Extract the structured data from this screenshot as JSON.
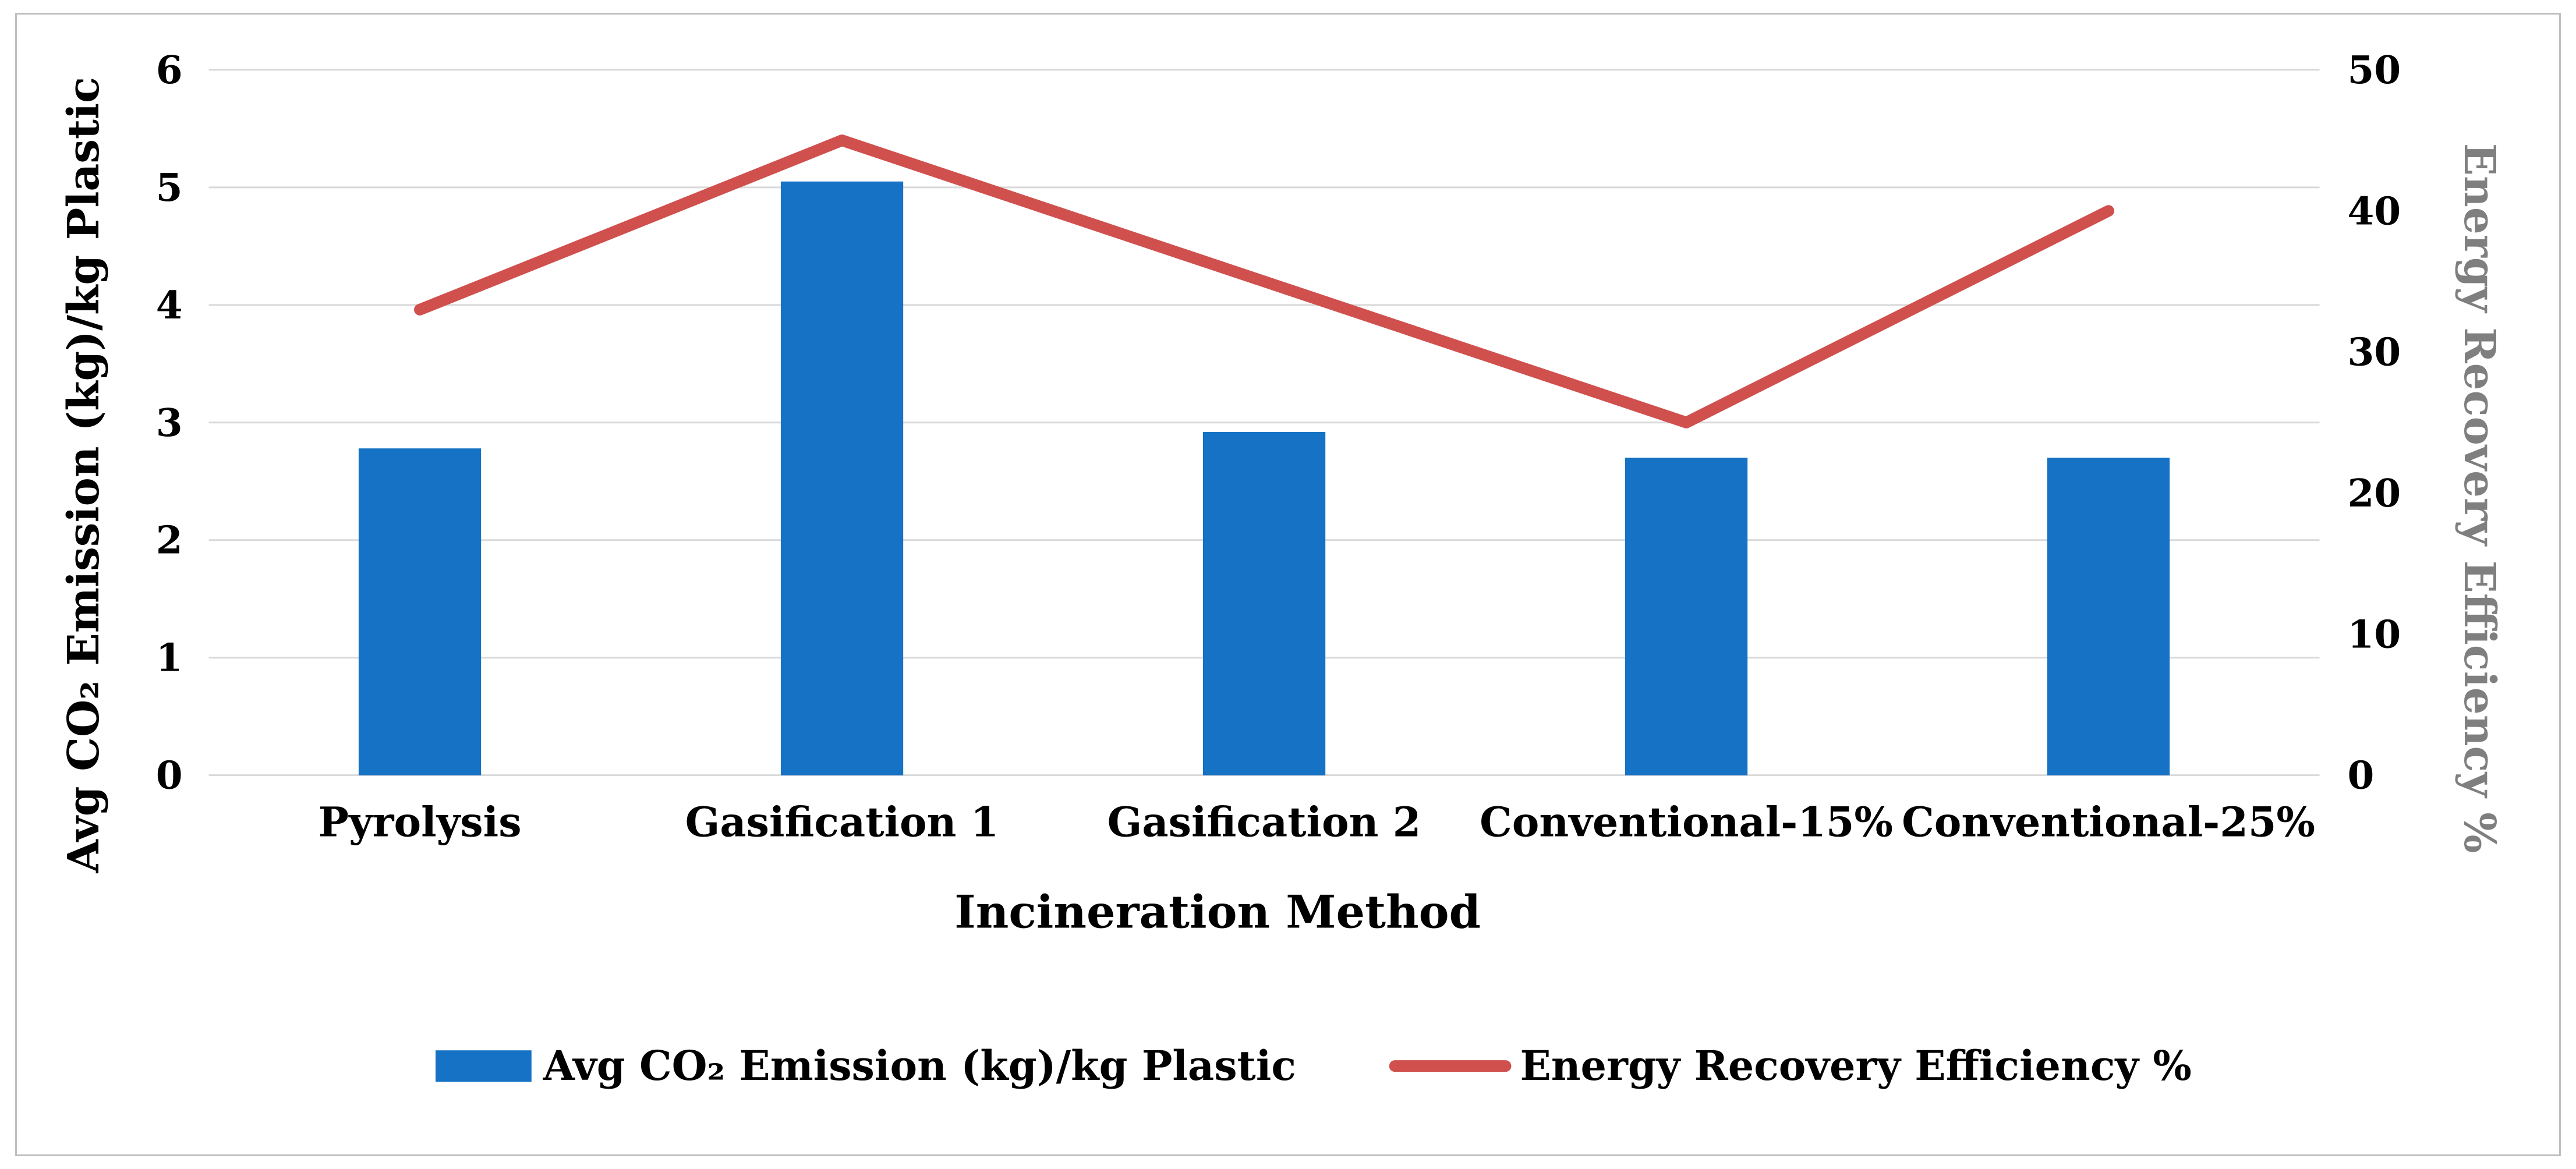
{
  "figure": {
    "border_color": "#BFBFBF",
    "background": "#FFFFFF"
  },
  "chart_data": {
    "type": "bar",
    "subtype": "combo-bar-line-dual-axis",
    "title": "",
    "xlabel": "Incineration Method",
    "categories": [
      "Pyrolysis",
      "Gasification 1",
      "Gasification 2",
      "Conventional-15%",
      "Conventional-25%"
    ],
    "series": [
      {
        "name": "Avg CO₂ Emission (kg)/kg Plastic",
        "type": "bar",
        "axis": "left",
        "color": "#1572C4",
        "values": [
          2.78,
          5.05,
          2.92,
          2.7,
          2.7
        ]
      },
      {
        "name": "Energy Recovery Efficiency %",
        "type": "line",
        "axis": "right",
        "color": "#D0504E",
        "values": [
          33,
          45,
          35,
          25,
          40
        ]
      }
    ],
    "left_axis": {
      "label": "Avg CO₂ Emission (kg)/kg Plastic",
      "min": 0,
      "max": 6,
      "ticks": [
        0,
        1,
        2,
        3,
        4,
        5,
        6
      ],
      "label_color": "#000000"
    },
    "right_axis": {
      "label": "Energy Recovery Efficiency %",
      "min": 0,
      "max": 50,
      "ticks": [
        0,
        10,
        20,
        30,
        40,
        50
      ],
      "label_color": "#7F7F7F"
    },
    "grid": true,
    "grid_color": "#D9D9D9",
    "legend_position": "bottom",
    "legend": [
      {
        "label": "Avg CO₂ Emission (kg)/kg Plastic",
        "marker": "bar-swatch",
        "color": "#1572C4"
      },
      {
        "label": "Energy Recovery Efficiency %",
        "marker": "line-swatch",
        "color": "#D0504E"
      }
    ]
  }
}
